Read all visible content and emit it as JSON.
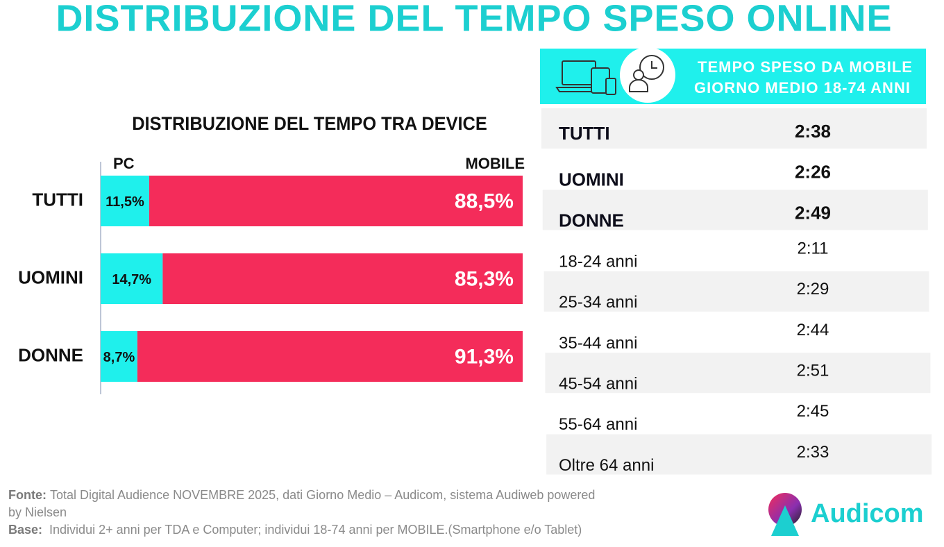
{
  "title": "DISTRIBUZIONE DEL TEMPO SPESO ONLINE",
  "chart_data": {
    "type": "bar",
    "orientation": "horizontal",
    "stacked": true,
    "title": "DISTRIBUZIONE DEL TEMPO TRA DEVICE",
    "categories": [
      "TUTTI",
      "UOMINI",
      "DONNE"
    ],
    "xlim": [
      0,
      100
    ],
    "series": [
      {
        "name": "PC",
        "color": "#1ff0ec",
        "values": [
          11.5,
          14.7,
          8.7
        ],
        "value_labels": [
          "11,5%",
          "14,7%",
          "8,7%"
        ]
      },
      {
        "name": "MOBILE",
        "color": "#f42c5a",
        "values": [
          88.5,
          85.3,
          91.3
        ],
        "value_labels": [
          "88,5%",
          "85,3%",
          "91,3%"
        ]
      }
    ]
  },
  "table": {
    "header": [
      "TEMPO SPESO DA MOBILE",
      "GIORNO MEDIO 18-74 ANNI"
    ],
    "rows": [
      [
        "TUTTI",
        "2:38"
      ],
      [
        "UOMINI",
        "2:26"
      ],
      [
        "DONNE",
        "2:49"
      ],
      [
        "18-24 anni",
        "2:11"
      ],
      [
        "25-34 anni",
        "2:29"
      ],
      [
        "35-44 anni",
        "2:44"
      ],
      [
        "45-54 anni",
        "2:51"
      ],
      [
        "55-64 anni",
        "2:45"
      ],
      [
        "Oltre 64 anni",
        "2:33"
      ]
    ]
  },
  "footer": {
    "source_label": "Fonte:",
    "source": "Total Digital Audience NOVEMBRE 2025, dati Giorno Medio – Audicom, sistema Audiweb powered",
    "source_cont": "by Nielsen",
    "base_label": "Base:",
    "base": " Individui 2+ anni per TDA e Computer; individui 18-74 anni per MOBILE.(Smartphone e/o Tablet)"
  },
  "logo": "Audicom"
}
